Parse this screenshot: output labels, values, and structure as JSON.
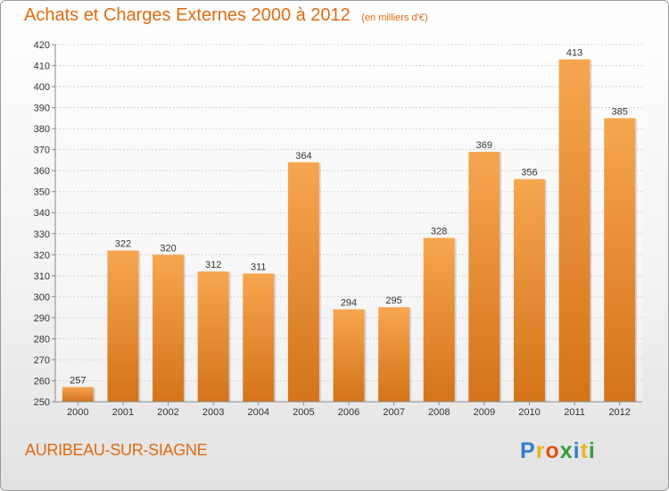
{
  "header": {
    "title": "Achats et Charges Externes 2000 à 2012",
    "unit": "(en milliers d'€)"
  },
  "footer": {
    "town": "AURIBEAU-SUR-SIAGNE",
    "logo_letters": [
      {
        "char": "P",
        "color": "#2f7fd0"
      },
      {
        "char": "r",
        "color": "#e9b423"
      },
      {
        "char": "o",
        "color": "#e0531b"
      },
      {
        "char": "x",
        "color": "#3a9b3a"
      },
      {
        "char": "i",
        "color": "#2f7fd0"
      },
      {
        "char": "t",
        "color": "#e9b423"
      },
      {
        "char": "i",
        "color": "#3a9b3a"
      }
    ]
  },
  "chart_data": {
    "type": "bar",
    "title": "Achats et Charges Externes 2000 à 2012",
    "subtitle": "(en milliers d'€)",
    "categories": [
      "2000",
      "2001",
      "2002",
      "2003",
      "2004",
      "2005",
      "2006",
      "2007",
      "2008",
      "2009",
      "2010",
      "2011",
      "2012"
    ],
    "values": [
      257,
      322,
      320,
      312,
      311,
      364,
      294,
      295,
      328,
      369,
      356,
      413,
      385
    ],
    "ylim": [
      250,
      420
    ],
    "yticks": [
      250,
      260,
      270,
      280,
      290,
      300,
      310,
      320,
      330,
      340,
      350,
      360,
      370,
      380,
      390,
      400,
      410,
      420
    ],
    "grid": true,
    "bar_color_top": "#f7a650",
    "bar_color_bottom": "#d4731a"
  }
}
